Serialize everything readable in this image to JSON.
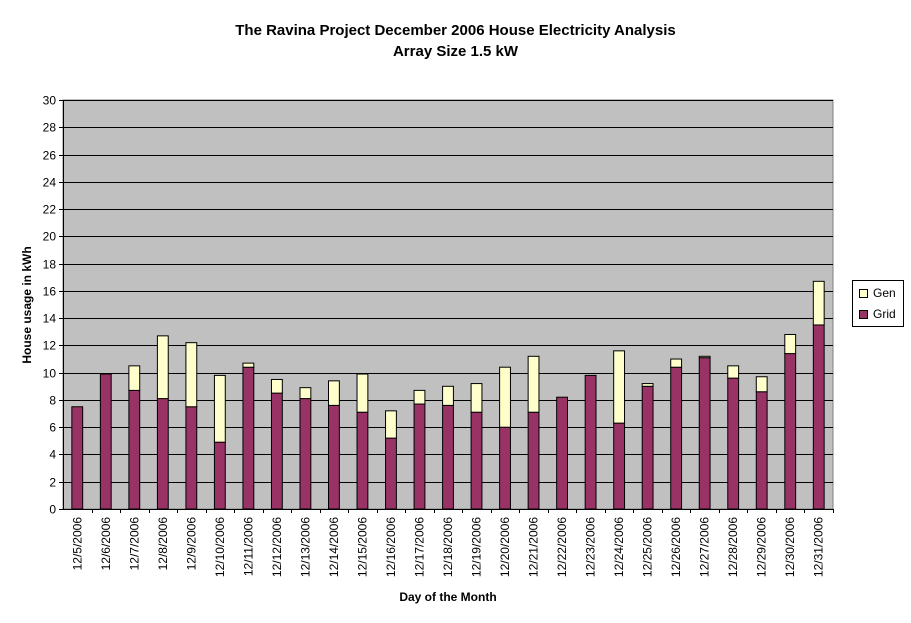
{
  "chart_data": {
    "type": "bar",
    "stacked": true,
    "title": "The Ravina Project December 2006 House Electricity Analysis",
    "subtitle": "Array Size 1.5 kW",
    "xlabel": "Day of the Month",
    "ylabel": "House usage in kWh",
    "ylim": [
      0,
      30
    ],
    "yticks": [
      "0",
      "2",
      "4",
      "6",
      "8",
      "10",
      "12",
      "14",
      "16",
      "18",
      "20",
      "22",
      "24",
      "26",
      "28",
      "30"
    ],
    "grid": true,
    "legend_position": "right",
    "categories": [
      "12/5/2006",
      "12/6/2006",
      "12/7/2006",
      "12/8/2006",
      "12/9/2006",
      "12/10/2006",
      "12/11/2006",
      "12/12/2006",
      "12/13/2006",
      "12/14/2006",
      "12/15/2006",
      "12/16/2006",
      "12/17/2006",
      "12/18/2006",
      "12/19/2006",
      "12/20/2006",
      "12/21/2006",
      "12/22/2006",
      "12/23/2006",
      "12/24/2006",
      "12/25/2006",
      "12/26/2006",
      "12/27/2006",
      "12/28/2006",
      "12/29/2006",
      "12/30/2006",
      "12/31/2006"
    ],
    "series": [
      {
        "name": "Grid",
        "color": "#993366",
        "values": [
          7.5,
          9.9,
          8.7,
          8.1,
          7.5,
          4.9,
          10.4,
          8.5,
          8.1,
          7.6,
          7.1,
          5.2,
          7.7,
          7.6,
          7.1,
          6.0,
          7.1,
          8.2,
          9.8,
          6.3,
          9.0,
          10.4,
          11.1,
          9.6,
          8.6,
          11.4,
          13.5
        ]
      },
      {
        "name": "Gen",
        "color": "#ffffcc",
        "values": [
          0.0,
          0.0,
          1.8,
          4.6,
          4.7,
          4.9,
          0.3,
          1.0,
          0.8,
          1.8,
          2.8,
          2.0,
          1.0,
          1.4,
          2.1,
          4.4,
          4.1,
          0.0,
          0.0,
          5.3,
          0.2,
          0.6,
          0.1,
          0.9,
          1.1,
          1.4,
          3.2
        ]
      }
    ],
    "colors": {
      "plot_background": "#c0c0c0",
      "gridline": "#000000"
    }
  }
}
